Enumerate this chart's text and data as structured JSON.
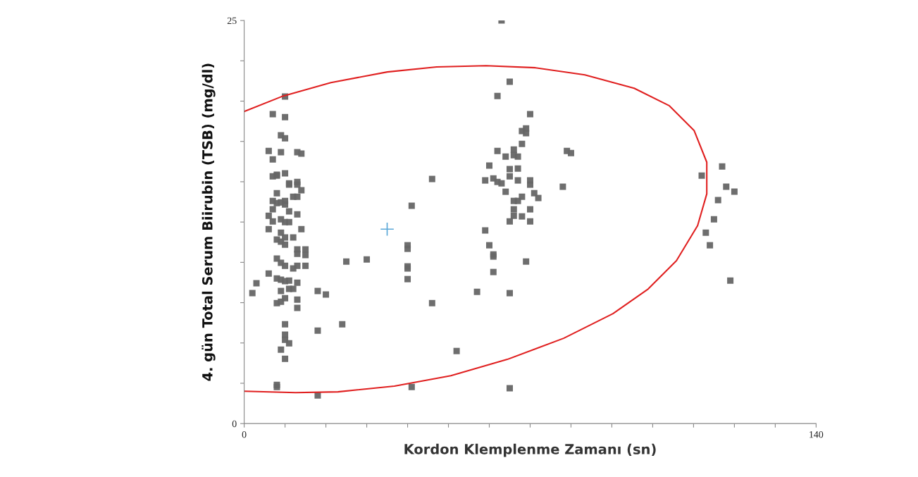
{
  "chart_data": {
    "type": "scatter",
    "xlabel": "Kordon Klemplenme Zamanı (sn)",
    "ylabel": "4. gün Total Serum Biirubin (TSB) (mg/dl)",
    "xlim": [
      0,
      140
    ],
    "ylim": [
      0,
      25
    ],
    "xticks": [
      0,
      {
        "value": 10,
        "label": null
      },
      {
        "value": 20,
        "label": null
      },
      {
        "value": 30,
        "label": null
      },
      {
        "value": 40,
        "label": null
      },
      {
        "value": 50,
        "label": null
      },
      {
        "value": 60,
        "label": null
      },
      {
        "value": 70,
        "label": null
      },
      {
        "value": 80,
        "label": null
      },
      {
        "value": 90,
        "label": null
      },
      {
        "value": 100,
        "label": null
      },
      {
        "value": 110,
        "label": null
      },
      {
        "value": 120,
        "label": null
      },
      {
        "value": 130,
        "label": null
      },
      140
    ],
    "yticks": [
      0,
      {
        "value": 2.5,
        "label": null
      },
      {
        "value": 5,
        "label": null
      },
      {
        "value": 7.5,
        "label": null
      },
      {
        "value": 10,
        "label": null
      },
      {
        "value": 12.5,
        "label": null
      },
      {
        "value": 15,
        "label": null
      },
      {
        "value": 17.5,
        "label": null
      },
      {
        "value": 20,
        "label": null
      },
      {
        "value": 22.5,
        "label": null
      },
      25
    ],
    "grid": false,
    "legend": false,
    "marker": "square",
    "series": [
      {
        "color": "#666666",
        "x": [
          10,
          7,
          10,
          9,
          10,
          6,
          9,
          13,
          14,
          7,
          7,
          8,
          8,
          10,
          11,
          11,
          13,
          13,
          14,
          8,
          12,
          13,
          7,
          8,
          9,
          10,
          10,
          7,
          11,
          13,
          6,
          7,
          9,
          10,
          11,
          6,
          14,
          9,
          10,
          8,
          12,
          9,
          10,
          13,
          15,
          13,
          15,
          8,
          9,
          13,
          10,
          12,
          15,
          6,
          8,
          9,
          10,
          11,
          13,
          11,
          9,
          12,
          10,
          13,
          8,
          9,
          13,
          2,
          3,
          10,
          10,
          10,
          11,
          9,
          10,
          8,
          8,
          18,
          20,
          18,
          18,
          24,
          25,
          30,
          40,
          40,
          40,
          40,
          40,
          41,
          46,
          46,
          41,
          52,
          57,
          63,
          65,
          62,
          70,
          69,
          68,
          69,
          68,
          62,
          66,
          67,
          64,
          66,
          79,
          80,
          60,
          67,
          65,
          61,
          62,
          63,
          59,
          65,
          67,
          70,
          70,
          78,
          64,
          68,
          71,
          72,
          66,
          67,
          66,
          70,
          68,
          65,
          66,
          70,
          59,
          60,
          61,
          61,
          69,
          61,
          65,
          65,
          117,
          112,
          118,
          120,
          116,
          115,
          113,
          114,
          119
        ],
        "values": [
          20.28,
          19.19,
          19.01,
          17.88,
          17.7,
          16.91,
          16.83,
          16.83,
          16.74,
          16.39,
          15.34,
          15.38,
          15.43,
          15.52,
          14.9,
          14.82,
          14.99,
          14.82,
          14.47,
          14.29,
          14.07,
          14.07,
          13.81,
          13.68,
          13.72,
          13.81,
          13.59,
          13.29,
          13.16,
          12.98,
          12.89,
          12.54,
          12.67,
          12.5,
          12.5,
          12.06,
          12.06,
          11.84,
          11.54,
          11.41,
          11.54,
          11.28,
          11.1,
          10.8,
          10.8,
          10.53,
          10.45,
          10.23,
          9.97,
          9.79,
          9.79,
          9.62,
          9.79,
          9.31,
          9.0,
          8.92,
          8.83,
          8.87,
          8.74,
          8.35,
          8.22,
          8.35,
          7.78,
          7.69,
          7.47,
          7.56,
          7.17,
          8.09,
          8.7,
          6.16,
          5.51,
          5.2,
          4.98,
          4.59,
          4.02,
          2.4,
          2.27,
          8.22,
          8.0,
          5.77,
          1.75,
          6.16,
          10.05,
          10.18,
          11.06,
          10.84,
          9.75,
          9.62,
          8.96,
          13.51,
          15.17,
          7.47,
          2.27,
          4.5,
          8.17,
          25.0,
          21.2,
          20.32,
          19.19,
          18.31,
          18.14,
          18.01,
          17.35,
          16.91,
          17.0,
          16.56,
          16.56,
          16.65,
          16.91,
          16.78,
          16.0,
          15.82,
          15.78,
          15.21,
          14.99,
          14.9,
          15.08,
          15.34,
          15.08,
          15.08,
          14.82,
          14.69,
          14.38,
          14.07,
          14.29,
          13.99,
          13.81,
          13.81,
          13.29,
          13.29,
          12.85,
          12.54,
          12.89,
          12.54,
          11.98,
          11.06,
          10.49,
          10.36,
          10.05,
          9.4,
          8.09,
          2.19,
          15.95,
          15.38,
          14.69,
          14.38,
          13.86,
          12.67,
          11.84,
          11.06,
          8.87
        ]
      },
      {
        "color": "#5ba8d8",
        "marker": "cross",
        "x": [
          35
        ],
        "values": [
          12.06
        ]
      },
      {
        "type": "line",
        "color": "#e02020",
        "marker": "none",
        "line_style": "solid",
        "x": [
          0,
          9.15,
          21.23,
          35.04,
          47.12,
          59.21,
          71.29,
          83.38,
          95.46,
          104.09,
          110.13,
          113.24,
          113.24,
          110.99,
          105.81,
          98.91,
          90.28,
          78.2,
          64.39,
          50.58,
          36.77,
          22.96,
          12.6,
          0
        ],
        "values": [
          19.36,
          20.28,
          21.15,
          21.81,
          22.12,
          22.2,
          22.07,
          21.63,
          20.8,
          19.71,
          18.18,
          16.21,
          14.25,
          12.28,
          10.1,
          8.35,
          6.82,
          5.29,
          3.98,
          2.97,
          2.32,
          1.97,
          1.92,
          2.01
        ]
      }
    ]
  }
}
